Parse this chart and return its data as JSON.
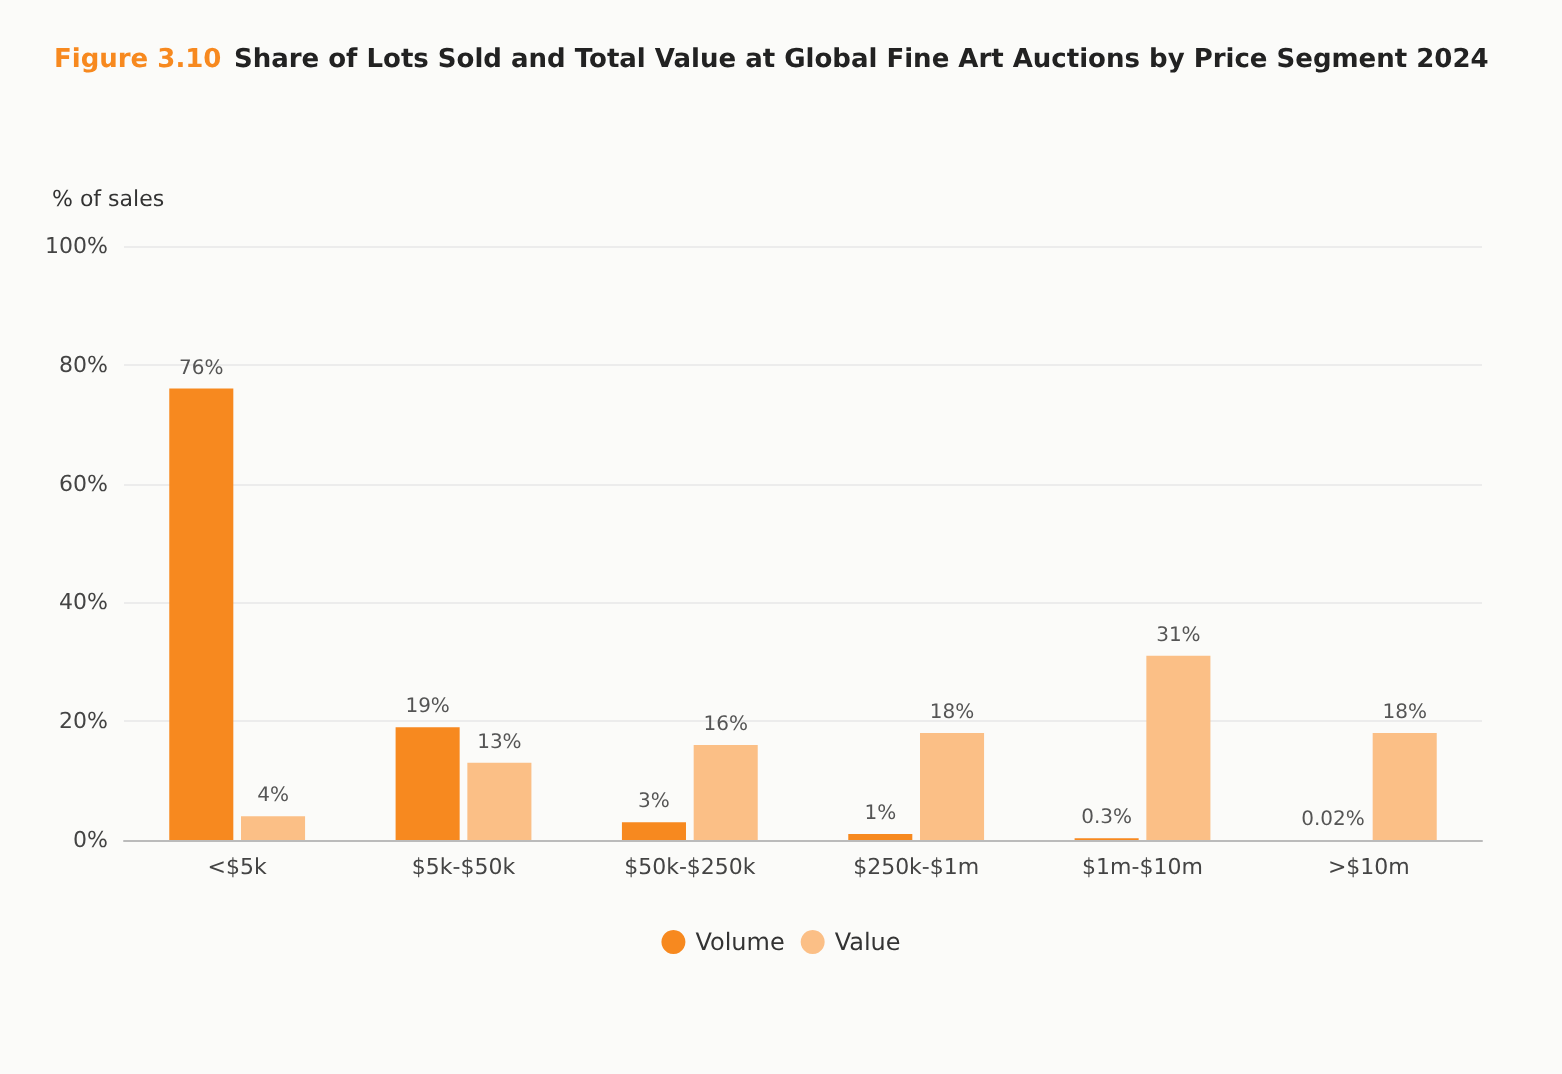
{
  "chart_data": {
    "type": "bar",
    "title": "Figure 3.10 Share of Lots Sold and Total Value at Global Fine Art Auctions by Price Segment 2024",
    "ylabel": "% of sales",
    "categories": [
      "<$5k",
      "$5k-$50k",
      "$50k-$250k",
      "$250k-$1m",
      "$1m-$10m",
      ">$10m"
    ],
    "series": [
      {
        "name": "Volume",
        "color": "#f7891f",
        "values": [
          76,
          19,
          3,
          1,
          0.3,
          0.02
        ],
        "value_labels": [
          "76%",
          "19%",
          "3%",
          "1%",
          "0.3%",
          "0.02%"
        ]
      },
      {
        "name": "Value",
        "color": "#fbbf86",
        "values": [
          4,
          13,
          16,
          18,
          31,
          18
        ],
        "value_labels": [
          "4%",
          "13%",
          "16%",
          "18%",
          "31%",
          "18%"
        ]
      }
    ],
    "ylim": [
      0,
      100
    ],
    "yticks": [
      {
        "value": 0,
        "label": "0%"
      },
      {
        "value": 20,
        "label": "20%"
      },
      {
        "value": 40,
        "label": "40%"
      },
      {
        "value": 60,
        "label": "60%"
      },
      {
        "value": 80,
        "label": "80%"
      },
      {
        "value": 100,
        "label": "100%"
      }
    ],
    "grid": "y",
    "legend": "bottom"
  }
}
